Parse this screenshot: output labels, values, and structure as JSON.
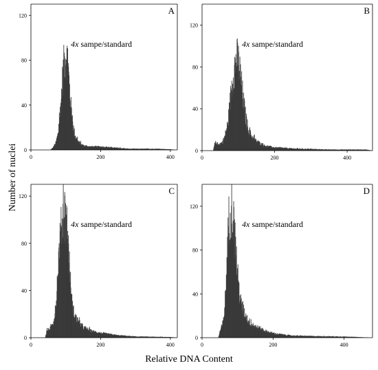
{
  "figure": {
    "shared_ylabel": "Number of nuclei",
    "shared_xlabel": "Relative DNA Content"
  },
  "chart_data": [
    {
      "type": "bar",
      "panel_letter": "A",
      "annotation_coef": "4x",
      "annotation_rest": " sampe/standard",
      "xlim": [
        0,
        420
      ],
      "ylim": [
        0,
        130
      ],
      "xticks": [
        0,
        200,
        400
      ],
      "yticks": [
        0,
        40,
        80,
        120
      ],
      "bar_color": "#3a3a3a",
      "profile": [
        [
          55,
          0
        ],
        [
          62,
          2
        ],
        [
          70,
          6
        ],
        [
          78,
          16
        ],
        [
          84,
          38
        ],
        [
          90,
          66
        ],
        [
          95,
          82
        ],
        [
          100,
          88
        ],
        [
          105,
          80
        ],
        [
          110,
          56
        ],
        [
          115,
          36
        ],
        [
          120,
          22
        ],
        [
          125,
          14
        ],
        [
          132,
          9
        ],
        [
          140,
          6
        ],
        [
          150,
          4
        ],
        [
          170,
          3
        ],
        [
          200,
          3
        ],
        [
          240,
          2
        ],
        [
          280,
          1
        ],
        [
          320,
          1
        ],
        [
          360,
          1
        ],
        [
          400,
          0.5
        ],
        [
          420,
          0
        ]
      ]
    },
    {
      "type": "bar",
      "panel_letter": "B",
      "annotation_coef": "4x",
      "annotation_rest": " sampe/standard",
      "xlim": [
        0,
        470
      ],
      "ylim": [
        0,
        140
      ],
      "xticks": [
        0,
        200,
        400
      ],
      "yticks": [
        0,
        40,
        80,
        120
      ],
      "bar_color": "#3a3a3a",
      "profile": [
        [
          30,
          0
        ],
        [
          35,
          8
        ],
        [
          45,
          6
        ],
        [
          55,
          8
        ],
        [
          62,
          14
        ],
        [
          70,
          26
        ],
        [
          75,
          42
        ],
        [
          80,
          60
        ],
        [
          85,
          74
        ],
        [
          90,
          84
        ],
        [
          95,
          90
        ],
        [
          100,
          86
        ],
        [
          105,
          74
        ],
        [
          110,
          58
        ],
        [
          115,
          44
        ],
        [
          120,
          32
        ],
        [
          125,
          24
        ],
        [
          130,
          18
        ],
        [
          140,
          12
        ],
        [
          150,
          9
        ],
        [
          170,
          5
        ],
        [
          200,
          3
        ],
        [
          250,
          2
        ],
        [
          300,
          1.5
        ],
        [
          350,
          1
        ],
        [
          400,
          1
        ],
        [
          450,
          1
        ],
        [
          470,
          0
        ]
      ]
    },
    {
      "type": "bar",
      "panel_letter": "C",
      "annotation_coef": "4x",
      "annotation_rest": " sampe/standard",
      "xlim": [
        0,
        420
      ],
      "ylim": [
        0,
        130
      ],
      "xticks": [
        0,
        200,
        400
      ],
      "yticks": [
        0,
        40,
        80,
        120
      ],
      "bar_color": "#3a3a3a",
      "profile": [
        [
          40,
          0
        ],
        [
          45,
          6
        ],
        [
          55,
          8
        ],
        [
          62,
          12
        ],
        [
          70,
          24
        ],
        [
          75,
          50
        ],
        [
          80,
          74
        ],
        [
          85,
          90
        ],
        [
          90,
          102
        ],
        [
          95,
          108
        ],
        [
          100,
          104
        ],
        [
          105,
          88
        ],
        [
          110,
          60
        ],
        [
          115,
          36
        ],
        [
          120,
          24
        ],
        [
          130,
          16
        ],
        [
          140,
          12
        ],
        [
          150,
          9
        ],
        [
          170,
          6
        ],
        [
          200,
          4
        ],
        [
          250,
          2
        ],
        [
          300,
          1
        ],
        [
          400,
          0.5
        ],
        [
          420,
          0
        ]
      ]
    },
    {
      "type": "bar",
      "panel_letter": "D",
      "annotation_coef": "4x",
      "annotation_rest": " sampe/standard",
      "xlim": [
        0,
        480
      ],
      "ylim": [
        0,
        140
      ],
      "xticks": [
        0,
        200,
        400
      ],
      "yticks": [
        0,
        40,
        80,
        120
      ],
      "bar_color": "#3a3a3a",
      "profile": [
        [
          45,
          0
        ],
        [
          50,
          6
        ],
        [
          60,
          16
        ],
        [
          65,
          40
        ],
        [
          70,
          76
        ],
        [
          75,
          112
        ],
        [
          80,
          124
        ],
        [
          85,
          118
        ],
        [
          90,
          100
        ],
        [
          95,
          80
        ],
        [
          100,
          56
        ],
        [
          105,
          40
        ],
        [
          110,
          30
        ],
        [
          120,
          22
        ],
        [
          130,
          16
        ],
        [
          140,
          12
        ],
        [
          160,
          9
        ],
        [
          180,
          6
        ],
        [
          200,
          4
        ],
        [
          250,
          2
        ],
        [
          300,
          1.5
        ],
        [
          400,
          1
        ],
        [
          480,
          0
        ]
      ]
    }
  ]
}
